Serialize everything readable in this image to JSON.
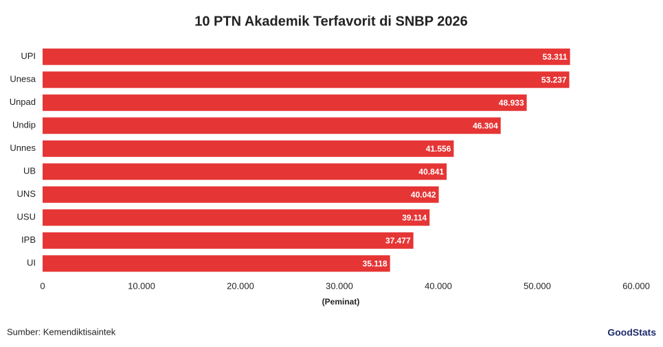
{
  "chart_data": {
    "type": "hbar",
    "title": "10 PTN Akademik Terfavorit di SNBP 2026",
    "x_label": "(Peminat)",
    "source": "Sumber: Kemendiktisaintek",
    "logo": "GoodStats",
    "categories": [
      "UPI",
      "Unesa",
      "Unpad",
      "Undip",
      "Unnes",
      "UB",
      "UNS",
      "USU",
      "IPB",
      "UI"
    ],
    "values": [
      53311,
      53237,
      48933,
      46304,
      41556,
      40841,
      40042,
      39114,
      37477,
      35118
    ],
    "value_labels": [
      "53.311",
      "53.237",
      "48.933",
      "46.304",
      "41.556",
      "40.841",
      "40.042",
      "39.114",
      "37.477",
      "35.118"
    ],
    "color": "#e63535",
    "xlim": [
      0,
      60000
    ],
    "xticks": [
      0,
      {
        "value": 10000,
        "label": "10.000"
      },
      {
        "value": 20000,
        "label": "20.000"
      },
      {
        "value": 30000,
        "label": "30.000"
      },
      {
        "value": 40000,
        "label": "40.000"
      },
      {
        "value": 50000,
        "label": "50.000"
      },
      {
        "value": 60000,
        "label": "60.000"
      }
    ]
  }
}
